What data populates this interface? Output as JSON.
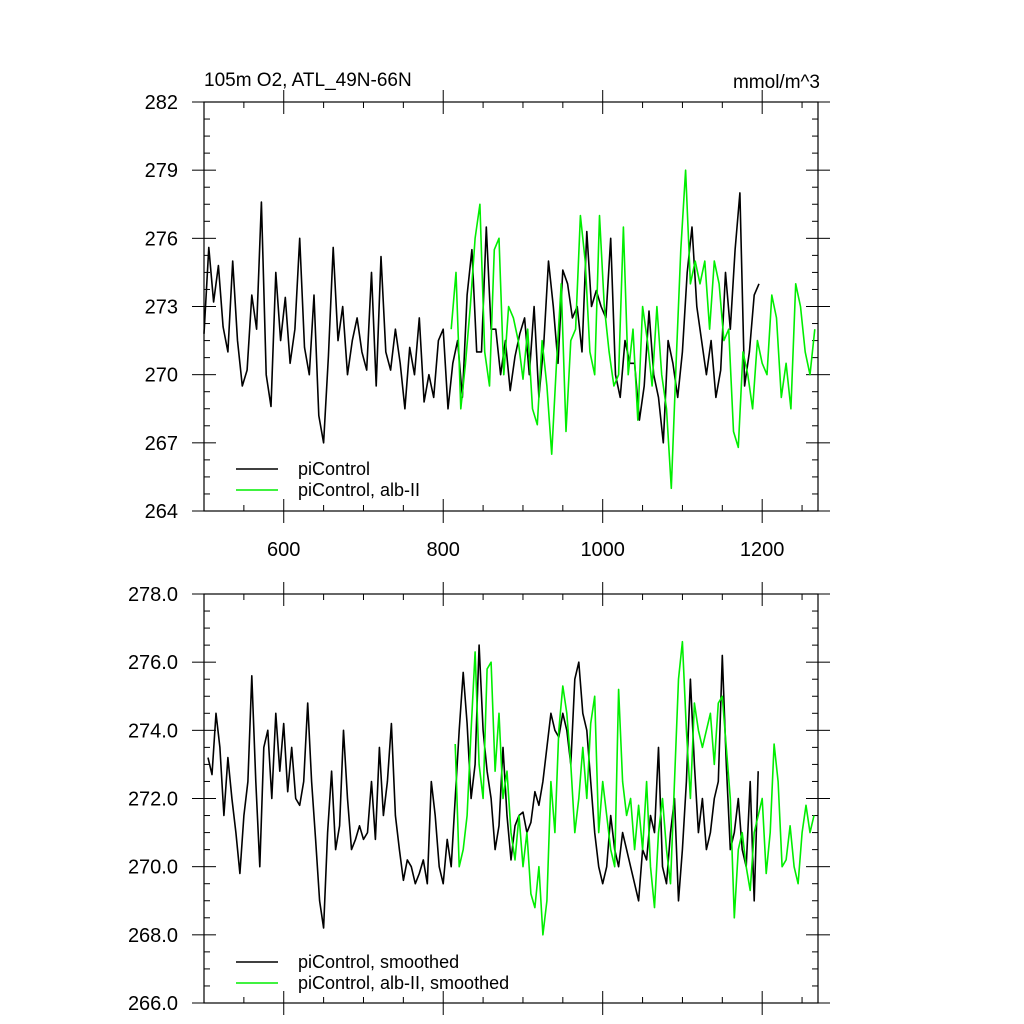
{
  "chart_data": [
    {
      "type": "line",
      "title": "105m O2, ATL_49N-66N",
      "units": "mmol/m^3",
      "xlim": [
        500,
        1270
      ],
      "ylim": [
        264,
        282
      ],
      "xticks": [
        600,
        800,
        1000,
        1200
      ],
      "xtick_labels": [
        "600",
        "800",
        "1000",
        "1200"
      ],
      "yticks": [
        264,
        267,
        270,
        273,
        276,
        279,
        282
      ],
      "ytick_labels": [
        "264",
        "267",
        "270",
        "273",
        "276",
        "279",
        "282"
      ],
      "legend_position": "bottom-left",
      "series": [
        {
          "name": "piControl",
          "color": "#000000",
          "x": [
            500,
            506,
            512,
            518,
            524,
            530,
            536,
            542,
            548,
            554,
            560,
            566,
            572,
            578,
            584,
            590,
            596,
            602,
            608,
            614,
            620,
            626,
            632,
            638,
            644,
            650,
            656,
            662,
            668,
            674,
            680,
            686,
            692,
            698,
            704,
            710,
            716,
            722,
            728,
            734,
            740,
            746,
            752,
            758,
            764,
            770,
            776,
            782,
            788,
            794,
            800,
            806,
            812,
            818,
            824,
            830,
            836,
            842,
            848,
            854,
            860,
            866,
            872,
            878,
            884,
            890,
            896,
            902,
            908,
            914,
            920,
            926,
            932,
            938,
            944,
            950,
            956,
            962,
            968,
            974,
            980,
            986,
            992,
            998,
            1004,
            1010,
            1016,
            1022,
            1028,
            1034,
            1040,
            1046,
            1052,
            1058,
            1064,
            1070,
            1076,
            1082,
            1088,
            1094,
            1100,
            1106,
            1112,
            1118,
            1124,
            1130,
            1136,
            1142,
            1148,
            1154,
            1160,
            1166,
            1172,
            1178,
            1184,
            1190,
            1196
          ],
          "values": [
            271.8,
            275.6,
            273.2,
            274.8,
            272.1,
            271.0,
            275.0,
            271.5,
            269.5,
            270.2,
            273.5,
            272.0,
            277.6,
            270.0,
            268.6,
            274.5,
            271.5,
            273.4,
            270.5,
            272.0,
            276.0,
            271.2,
            270.0,
            273.5,
            268.2,
            267.0,
            270.8,
            275.6,
            271.5,
            273.0,
            270.0,
            271.5,
            272.5,
            271.0,
            270.2,
            274.5,
            269.5,
            275.2,
            271.0,
            270.2,
            272.0,
            270.5,
            268.5,
            271.2,
            270.0,
            272.5,
            268.8,
            270.0,
            269.0,
            271.5,
            272.0,
            268.5,
            270.5,
            271.5,
            269.0,
            273.5,
            275.5,
            271.0,
            271.0,
            276.5,
            272.0,
            272.0,
            270.0,
            271.5,
            269.3,
            270.8,
            271.8,
            272.5,
            270.0,
            273.0,
            269.0,
            271.3,
            275.0,
            273.0,
            270.5,
            274.6,
            274.0,
            272.5,
            273.0,
            271.0,
            276.3,
            273.0,
            273.7,
            273.0,
            272.5,
            276.0,
            270.0,
            269.0,
            271.5,
            270.5,
            270.5,
            268.0,
            269.5,
            272.8,
            270.0,
            269.0,
            267.0,
            271.5,
            270.5,
            269.0,
            271.0,
            274.5,
            276.5,
            273.0,
            271.5,
            270.0,
            271.5,
            269.0,
            270.2,
            274.5,
            272.0,
            275.5,
            278.0,
            269.5,
            271.0,
            273.5,
            274.0
          ]
        },
        {
          "name": "piControl, alb-II",
          "color": "#00ee00",
          "x": [
            810,
            816,
            822,
            828,
            834,
            840,
            846,
            852,
            858,
            864,
            870,
            876,
            882,
            888,
            894,
            900,
            906,
            912,
            918,
            924,
            930,
            936,
            942,
            948,
            954,
            960,
            966,
            972,
            978,
            984,
            990,
            996,
            1002,
            1008,
            1014,
            1020,
            1026,
            1032,
            1038,
            1044,
            1050,
            1056,
            1062,
            1068,
            1074,
            1080,
            1086,
            1092,
            1098,
            1104,
            1110,
            1116,
            1122,
            1128,
            1134,
            1140,
            1146,
            1152,
            1158,
            1164,
            1170,
            1176,
            1182,
            1188,
            1194,
            1200,
            1206,
            1212,
            1218,
            1224,
            1230,
            1236,
            1242,
            1248,
            1254,
            1260,
            1266
          ],
          "values": [
            272.0,
            274.5,
            268.5,
            270.5,
            273.0,
            276.0,
            277.5,
            271.0,
            269.5,
            275.5,
            276.0,
            270.0,
            273.0,
            272.5,
            271.5,
            269.8,
            272.0,
            268.5,
            267.8,
            271.5,
            269.5,
            266.5,
            270.5,
            274.0,
            267.5,
            271.5,
            272.0,
            277.0,
            275.0,
            271.0,
            270.0,
            277.0,
            273.0,
            271.0,
            269.5,
            270.0,
            276.5,
            270.0,
            272.0,
            268.0,
            273.0,
            271.5,
            269.5,
            273.0,
            270.0,
            268.5,
            265.0,
            270.5,
            275.5,
            279.0,
            274.0,
            275.0,
            274.0,
            275.0,
            272.0,
            275.0,
            274.0,
            271.5,
            272.0,
            267.5,
            266.8,
            271.0,
            270.0,
            268.5,
            271.5,
            270.5,
            270.0,
            273.5,
            272.5,
            269.0,
            270.5,
            268.5,
            274.0,
            273.0,
            271.0,
            270.0,
            272.0
          ]
        }
      ]
    },
    {
      "type": "line",
      "title": "",
      "xlim": [
        500,
        1270
      ],
      "ylim": [
        266,
        278
      ],
      "xticks": [
        600,
        800,
        1000,
        1200
      ],
      "yticks": [
        266,
        268,
        270,
        272,
        274,
        276,
        278
      ],
      "ytick_labels": [
        "266.0",
        "268.0",
        "270.0",
        "272.0",
        "274.0",
        "276.0",
        "278.0"
      ],
      "legend_position": "bottom-left",
      "series": [
        {
          "name": "piControl, smoothed",
          "color": "#000000",
          "x": [
            505,
            510,
            515,
            520,
            525,
            530,
            535,
            540,
            545,
            550,
            555,
            560,
            565,
            570,
            575,
            580,
            585,
            590,
            595,
            600,
            605,
            610,
            615,
            620,
            625,
            630,
            635,
            640,
            645,
            650,
            655,
            660,
            665,
            670,
            675,
            680,
            685,
            690,
            695,
            700,
            705,
            710,
            715,
            720,
            725,
            730,
            735,
            740,
            745,
            750,
            755,
            760,
            765,
            770,
            775,
            780,
            785,
            790,
            795,
            800,
            805,
            810,
            815,
            820,
            825,
            830,
            835,
            840,
            845,
            850,
            855,
            860,
            865,
            870,
            875,
            880,
            885,
            890,
            895,
            900,
            905,
            910,
            915,
            920,
            925,
            930,
            935,
            940,
            945,
            950,
            955,
            960,
            965,
            970,
            975,
            980,
            985,
            990,
            995,
            1000,
            1005,
            1010,
            1015,
            1020,
            1025,
            1030,
            1035,
            1040,
            1045,
            1050,
            1055,
            1060,
            1065,
            1070,
            1075,
            1080,
            1085,
            1090,
            1095,
            1100,
            1105,
            1110,
            1115,
            1120,
            1125,
            1130,
            1135,
            1140,
            1145,
            1150,
            1155,
            1160,
            1165,
            1170,
            1175,
            1180,
            1185,
            1190,
            1195
          ],
          "values": [
            273.2,
            272.7,
            274.5,
            273.5,
            271.5,
            273.2,
            272.0,
            271.0,
            269.8,
            271.5,
            272.5,
            275.6,
            272.5,
            270.0,
            273.5,
            274.0,
            272.0,
            274.5,
            272.8,
            274.2,
            272.2,
            273.5,
            272.0,
            271.8,
            272.5,
            274.8,
            272.5,
            270.8,
            269.0,
            268.2,
            271.0,
            272.8,
            270.5,
            271.2,
            274.0,
            272.0,
            270.5,
            270.8,
            271.2,
            270.8,
            271.0,
            272.5,
            270.8,
            273.5,
            271.5,
            272.5,
            274.2,
            271.5,
            270.5,
            269.6,
            270.2,
            270.0,
            269.5,
            269.8,
            270.2,
            269.5,
            272.5,
            271.5,
            270.0,
            269.5,
            270.8,
            270.0,
            272.0,
            274.0,
            275.7,
            274.2,
            272.0,
            273.0,
            276.5,
            274.0,
            272.8,
            272.0,
            270.5,
            271.2,
            273.5,
            271.5,
            270.2,
            271.2,
            271.5,
            271.6,
            271.0,
            271.3,
            272.2,
            271.8,
            272.5,
            273.5,
            274.5,
            274.0,
            273.8,
            274.5,
            274.0,
            273.0,
            275.5,
            276.0,
            274.5,
            274.0,
            272.5,
            271.0,
            270.0,
            269.5,
            270.0,
            271.5,
            270.5,
            270.0,
            271.0,
            270.5,
            270.0,
            269.5,
            269.0,
            270.5,
            270.2,
            271.5,
            271.0,
            273.5,
            270.0,
            269.5,
            271.0,
            272.0,
            269.0,
            270.5,
            272.5,
            275.5,
            273.0,
            271.0,
            272.0,
            270.5,
            271.0,
            272.0,
            272.5,
            276.2,
            273.0,
            270.5,
            271.0,
            272.0,
            270.5,
            270.0,
            272.5,
            269.0,
            272.8
          ]
        },
        {
          "name": "piControl, alb-II, smoothed",
          "color": "#00ee00",
          "x": [
            815,
            820,
            825,
            830,
            835,
            840,
            845,
            850,
            855,
            860,
            865,
            870,
            875,
            880,
            885,
            890,
            895,
            900,
            905,
            910,
            915,
            920,
            925,
            930,
            935,
            940,
            945,
            950,
            955,
            960,
            965,
            970,
            975,
            980,
            985,
            990,
            995,
            1000,
            1005,
            1010,
            1015,
            1020,
            1025,
            1030,
            1035,
            1040,
            1045,
            1050,
            1055,
            1060,
            1065,
            1070,
            1075,
            1080,
            1085,
            1090,
            1095,
            1100,
            1105,
            1110,
            1115,
            1120,
            1125,
            1130,
            1135,
            1140,
            1145,
            1150,
            1155,
            1160,
            1165,
            1170,
            1175,
            1180,
            1185,
            1190,
            1195,
            1200,
            1205,
            1210,
            1215,
            1220,
            1225,
            1230,
            1235,
            1240,
            1245,
            1250,
            1255,
            1260,
            1265
          ],
          "values": [
            273.6,
            270.0,
            270.5,
            271.5,
            274.0,
            276.3,
            273.0,
            272.0,
            275.8,
            276.0,
            272.8,
            274.5,
            272.0,
            272.8,
            271.0,
            270.2,
            271.5,
            270.0,
            271.0,
            269.2,
            268.8,
            270.0,
            268.0,
            269.0,
            272.5,
            271.0,
            274.0,
            275.3,
            274.5,
            273.0,
            271.0,
            272.0,
            273.5,
            272.0,
            274.2,
            275.0,
            271.0,
            272.5,
            271.5,
            270.5,
            270.0,
            275.2,
            272.5,
            271.5,
            272.0,
            270.5,
            271.8,
            270.5,
            272.5,
            270.0,
            268.8,
            271.0,
            272.0,
            270.5,
            269.5,
            272.5,
            275.5,
            276.6,
            274.0,
            272.0,
            274.8,
            274.0,
            273.5,
            274.0,
            274.5,
            273.0,
            274.8,
            275.0,
            273.5,
            272.0,
            268.5,
            270.5,
            271.0,
            270.0,
            269.3,
            271.0,
            271.5,
            272.0,
            269.8,
            271.0,
            273.6,
            272.5,
            270.0,
            270.2,
            271.2,
            270.0,
            269.5,
            271.0,
            271.8,
            271.0,
            271.5
          ]
        }
      ]
    }
  ]
}
